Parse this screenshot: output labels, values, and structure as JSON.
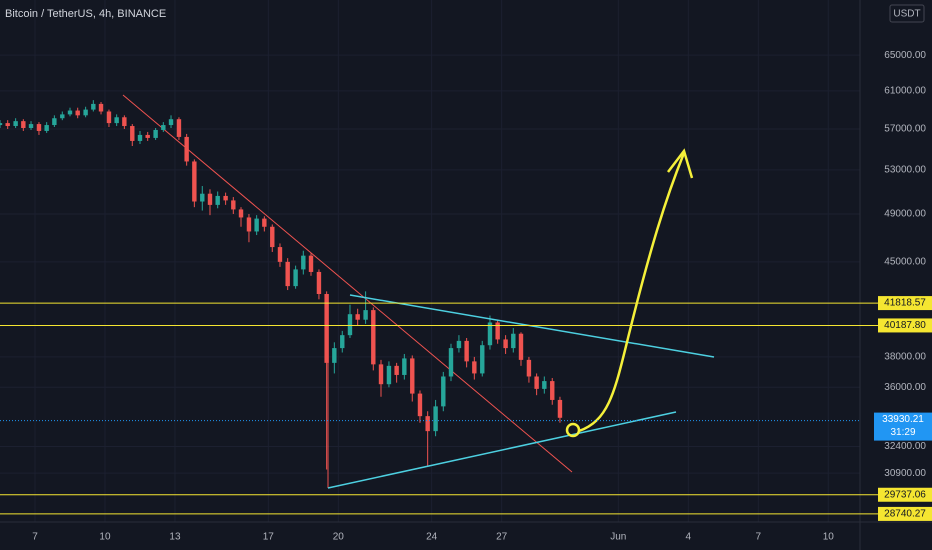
{
  "chart_data": {
    "type": "candlestick",
    "title": "Bitcoin / TetherUS, 4h, BINANCE",
    "currency": "USDT",
    "x": [
      5.5,
      5.83,
      6.17,
      6.5,
      6.83,
      7.17,
      7.5,
      7.83,
      8.17,
      8.5,
      8.83,
      9.17,
      9.5,
      9.83,
      10.17,
      10.5,
      10.83,
      11.17,
      11.5,
      11.83,
      12.17,
      12.5,
      12.83,
      13.17,
      13.5,
      13.83,
      14.17,
      14.5,
      14.83,
      15.17,
      15.5,
      15.83,
      16.17,
      16.5,
      16.83,
      17.17,
      17.5,
      17.83,
      18.17,
      18.5,
      18.83,
      19.17,
      19.5,
      19.83,
      20.17,
      20.5,
      20.83,
      21.17,
      21.5,
      21.83,
      22.17,
      22.5,
      22.83,
      23.17,
      23.5,
      23.83,
      24.17,
      24.5,
      24.83,
      25.17,
      25.5,
      25.83,
      26.17,
      26.5,
      26.83,
      27.17,
      27.5,
      27.83,
      28.17,
      28.5,
      28.83,
      29.17,
      29.5
    ],
    "open": [
      57400,
      57600,
      57300,
      57800,
      57100,
      57500,
      56800,
      57400,
      58100,
      58500,
      58900,
      58400,
      59000,
      59600,
      58800,
      57600,
      58200,
      57300,
      55800,
      56400,
      56100,
      56900,
      57400,
      58000,
      56200,
      53800,
      50100,
      50800,
      49800,
      50600,
      50200,
      49400,
      48700,
      47500,
      48600,
      47900,
      46200,
      45000,
      43100,
      44400,
      45500,
      44200,
      42500,
      37600,
      38600,
      39500,
      41000,
      40600,
      41300,
      37500,
      36200,
      37400,
      36800,
      37900,
      35600,
      34200,
      33300,
      34800,
      36700,
      38600,
      39100,
      37700,
      36900,
      38800,
      40400,
      39200,
      38600,
      39600,
      37800,
      36700,
      35900,
      36400,
      35200
    ],
    "high": [
      57900,
      57900,
      58100,
      58000,
      57800,
      57700,
      57700,
      58400,
      58800,
      59200,
      59200,
      59300,
      60000,
      59800,
      59000,
      58500,
      58400,
      57500,
      56800,
      56700,
      57100,
      57700,
      58400,
      58200,
      56500,
      54000,
      51500,
      51200,
      51000,
      50900,
      50500,
      49600,
      49000,
      48900,
      48800,
      48100,
      46500,
      45300,
      44700,
      45900,
      45700,
      44400,
      42700,
      39000,
      39800,
      41700,
      41400,
      42700,
      41500,
      37800,
      37700,
      37600,
      38200,
      38100,
      35800,
      34500,
      35200,
      37000,
      38900,
      39500,
      39300,
      38000,
      39100,
      40900,
      40600,
      39500,
      40000,
      39700,
      38000,
      36900,
      36700,
      36600,
      35400
    ],
    "low": [
      57100,
      57000,
      57100,
      56800,
      56900,
      56400,
      56600,
      57200,
      57900,
      58300,
      58100,
      58200,
      58800,
      58500,
      57200,
      57300,
      57000,
      55300,
      55500,
      55800,
      55900,
      56700,
      57100,
      55900,
      53400,
      49600,
      49300,
      48900,
      49500,
      49800,
      49000,
      47900,
      46600,
      47200,
      47500,
      45800,
      44600,
      42800,
      42900,
      44000,
      43900,
      42100,
      31100,
      36900,
      38300,
      39300,
      40200,
      40300,
      37100,
      35400,
      36000,
      36300,
      36500,
      35100,
      33800,
      31300,
      33000,
      34500,
      36400,
      38300,
      37300,
      36500,
      36700,
      38500,
      38900,
      38200,
      38300,
      37400,
      36300,
      35500,
      35600,
      34900,
      33800
    ],
    "close": [
      57600,
      57300,
      57800,
      57100,
      57500,
      56800,
      57400,
      58100,
      58500,
      58900,
      58400,
      59000,
      59600,
      58800,
      57600,
      58200,
      57300,
      55800,
      56400,
      56100,
      56900,
      57400,
      58000,
      56200,
      53800,
      50100,
      50800,
      49800,
      50600,
      50200,
      49400,
      48700,
      47500,
      48600,
      47900,
      46200,
      45000,
      43100,
      44400,
      45500,
      44200,
      42500,
      37600,
      38600,
      39500,
      41000,
      40600,
      41300,
      37500,
      36200,
      37400,
      36800,
      37900,
      35600,
      34200,
      33300,
      34800,
      36700,
      38600,
      39100,
      37700,
      36900,
      38800,
      40400,
      39200,
      38600,
      39600,
      37800,
      36700,
      35900,
      36400,
      35200,
      34100
    ],
    "up_color": "#26a69a",
    "down_color": "#ef5350",
    "log_scale": true,
    "grid": true,
    "xlim": [
      5.5,
      42.36
    ],
    "xticks": [
      7,
      10,
      13,
      17,
      20,
      24,
      27,
      {
        "value": 32,
        "label": "Jun"
      },
      {
        "value": 35,
        "label": "4"
      },
      {
        "value": 38,
        "label": "7"
      },
      {
        "value": 41,
        "label": "10"
      }
    ],
    "ylim": [
      28330,
      71700
    ],
    "yticks": [
      {
        "value": 65000,
        "label": "65000.00"
      },
      {
        "value": 61000,
        "label": "61000.00"
      },
      {
        "value": 57000,
        "label": "57000.00"
      },
      {
        "value": 53000,
        "label": "53000.00"
      },
      {
        "value": 49000,
        "label": "49000.00"
      },
      {
        "value": 45000,
        "label": "45000.00"
      },
      {
        "value": 38000,
        "label": "38000.00"
      },
      {
        "value": 36000,
        "label": "36000.00"
      },
      {
        "value": 32400,
        "label": "32400.00"
      },
      {
        "value": 30900,
        "label": "30900.00"
      }
    ],
    "levels": [
      41818.57,
      40187.8,
      29737.06,
      28740.27
    ],
    "level_labels": [
      "41818.57",
      "40187.80",
      "29737.06",
      "28740.27"
    ],
    "level_color": "#f5e631",
    "last_price": 33930.21,
    "last_price_label": "33930.21",
    "countdown": "31:29",
    "last_price_color": "#2196f3"
  }
}
